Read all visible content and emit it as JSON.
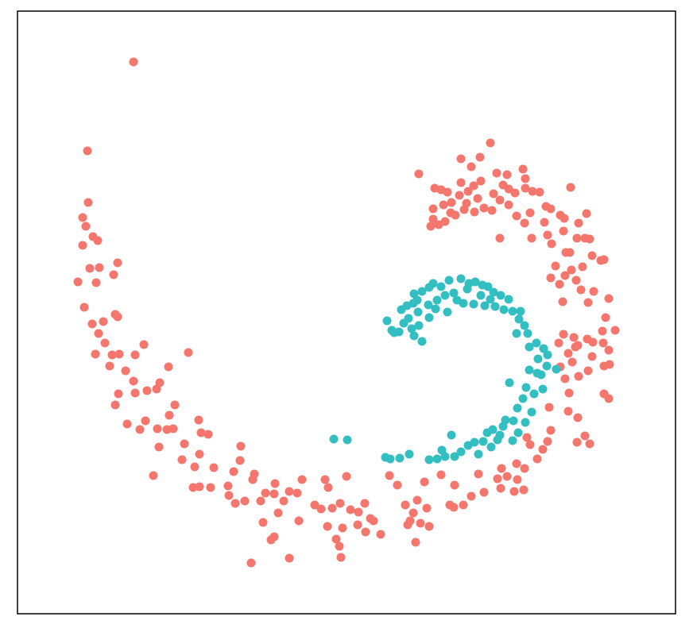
{
  "chart_data": {
    "type": "scatter",
    "xlim": [
      22,
      850
    ],
    "ylim": [
      773,
      14
    ],
    "series": [
      {
        "color": "#f4766d",
        "x": [
          168,
          110,
          111,
          104,
          108,
          117,
          104,
          123,
          148,
          113,
          125,
          143,
          98,
          121,
          106,
          145,
          148,
          116,
          130,
          124,
          132,
          150,
          141,
          120,
          138,
          181,
          170,
          158,
          212,
          237,
          201,
          197,
          185,
          170,
          149,
          145,
          168,
          220,
          213,
          183,
          160,
          176,
          198,
          210,
          218,
          250,
          253,
          262,
          200,
          232,
          251,
          229,
          245,
          269,
          193,
          251,
          243,
          265,
          287,
          294,
          303,
          302,
          320,
          318,
          346,
          380,
          409,
          413,
          436,
          288,
          296,
          308,
          328,
          334,
          345,
          357,
          364,
          374,
          396,
          404,
          418,
          428,
          441,
          459,
          451,
          466,
          470,
          350,
          331,
          376,
          412,
          431,
          450,
          460,
          479,
          423,
          427,
          345,
          341,
          364,
          316,
          429,
          490,
          500,
          510,
          525,
          537,
          520,
          529,
          540,
          516,
          513,
          523,
          534,
          555,
          572,
          566,
          571,
          583,
          593,
          609,
          602,
          631,
          626,
          638,
          651,
          659,
          647,
          630,
          650,
          660,
          663,
          667,
          676,
          683,
          689,
          693,
          691,
          715,
          727,
          736,
          742,
          726,
          716,
          711,
          728,
          740,
          745,
          760,
          767,
          766,
          759,
          746,
          739,
          758,
          774,
          762,
          722,
          709,
          708,
          704,
          719,
          699,
          693,
          711,
          725,
          733,
          745,
          756,
          760,
          742,
          736,
          726,
          717,
          731,
          740,
          747,
          766,
          715,
          724,
          727,
          703,
          705,
          720,
          760,
          766,
          527,
          547,
          555,
          563,
          580,
          617,
          604,
          593,
          605,
          625,
          638,
          658,
          661,
          670,
          679,
          693,
          705,
          718,
          687,
          667,
          660,
          650,
          640,
          629,
          619,
          609,
          601,
          589,
          578,
          568,
          558,
          545,
          545,
          552,
          560,
          573,
          584,
          597,
          629,
          685,
          689,
          710,
          709,
          738,
          728,
          669,
          694,
          712,
          580,
          596,
          633,
          648,
          661,
          542,
          567,
          587,
          621,
          640
        ],
        "values": [
          78,
          190,
          255,
          274,
          285,
          298,
          309,
          303,
          331,
          338,
          337,
          346,
          355,
          356,
          387,
          396,
          399,
          408,
          405,
          420,
          432,
          446,
          447,
          446,
          461,
          434,
          447,
          467,
          462,
          444,
          482,
          490,
          492,
          495,
          496,
          510,
          480,
          510,
          523,
          530,
          534,
          541,
          540,
          541,
          540,
          529,
          545,
          547,
          563,
          559,
          572,
          579,
          588,
          589,
          599,
          613,
          614,
          614,
          612,
          594,
          562,
          580,
          597,
          604,
          609,
          604,
          604,
          614,
          600,
          624,
          634,
          631,
          631,
          621,
          622,
          631,
          619,
          621,
          636,
          641,
          640,
          634,
          642,
          634,
          645,
          653,
          656,
          646,
          658,
          656,
          663,
          665,
          661,
          670,
          673,
          679,
          688,
          676,
          680,
          703,
          709,
          702,
          599,
          611,
          636,
          630,
          640,
          646,
          659,
          663,
          656,
          661,
          683,
          607,
          598,
          611,
          636,
          639,
          636,
          625,
          620,
          597,
          590,
          603,
          600,
          604,
          617,
          619,
          615,
          584,
          590,
          551,
          560,
          578,
          566,
          556,
          542,
          513,
          518,
          526,
          549,
          559,
          557,
          495,
          477,
          474,
          467,
          449,
          461,
          459,
          441,
          432,
          431,
          427,
          417,
          416,
          400,
          425,
          421,
          380,
          358,
          340,
          335,
          350,
          347,
          353,
          336,
          322,
          328,
          327,
          301,
          300,
          300,
          318,
          365,
          381,
          367,
          376,
          445,
          437,
          435,
          432,
          462,
          456,
          496,
          502,
          219,
          237,
          239,
          242,
          200,
          180,
          198,
          210,
          228,
          218,
          220,
          213,
          237,
          241,
          242,
          263,
          271,
          236,
          260,
          268,
          281,
          272,
          258,
          252,
          265,
          262,
          250,
          241,
          246,
          255,
          258,
          263,
          276,
          283,
          279,
          271,
          264,
          267,
          300,
          280,
          296,
          275,
          291,
          269,
          281,
          300,
          307,
          318,
          230,
          234,
          233,
          243,
          225,
          285,
          268,
          256,
          244,
          238
        ]
      },
      {
        "color": "#33bfc2",
        "x": [
          420,
          437,
          487,
          493,
          496,
          502,
          508,
          514,
          505,
          512,
          520,
          525,
          521,
          531,
          540,
          545,
          555,
          565,
          580,
          590,
          598,
          607,
          614,
          621,
          630,
          640,
          623,
          610,
          596,
          583,
          575,
          563,
          550,
          539,
          526,
          518,
          521,
          531,
          527,
          540,
          548,
          560,
          571,
          588,
          605,
          617,
          634,
          645,
          655,
          653,
          660,
          664,
          650,
          666,
          675,
          684,
          689,
          677,
          666,
          676,
          681,
          688,
          700,
          683,
          672,
          662,
          641,
          658,
          651,
          646,
          636,
          633,
          620,
          626,
          645,
          652,
          661,
          669,
          618,
          608,
          597,
          589,
          580,
          568,
          572,
          560,
          550,
          540,
          556,
          515,
          503,
          491,
          485,
          602,
          613,
          629
        ],
        "values": [
          553,
          554,
          404,
          416,
          419,
          418,
          407,
          401,
          390,
          385,
          382,
          378,
          370,
          367,
          362,
          357,
          361,
          353,
          351,
          357,
          355,
          359,
          361,
          368,
          372,
          377,
          386,
          385,
          383,
          382,
          378,
          393,
          378,
          384,
          393,
          414,
          423,
          430,
          410,
          400,
          389,
          372,
          369,
          364,
          372,
          377,
          390,
          392,
          392,
          402,
          410,
          420,
          420,
          437,
          432,
          439,
          447,
          452,
          466,
          470,
          472,
          461,
          465,
          490,
          496,
          488,
          482,
          502,
          514,
          530,
          529,
          537,
          541,
          554,
          555,
          545,
          532,
          519,
          563,
          556,
          557,
          561,
          569,
          548,
          575,
          575,
          578,
          579,
          567,
          572,
          577,
          578,
          576,
          572,
          545,
          548
        ]
      }
    ]
  }
}
